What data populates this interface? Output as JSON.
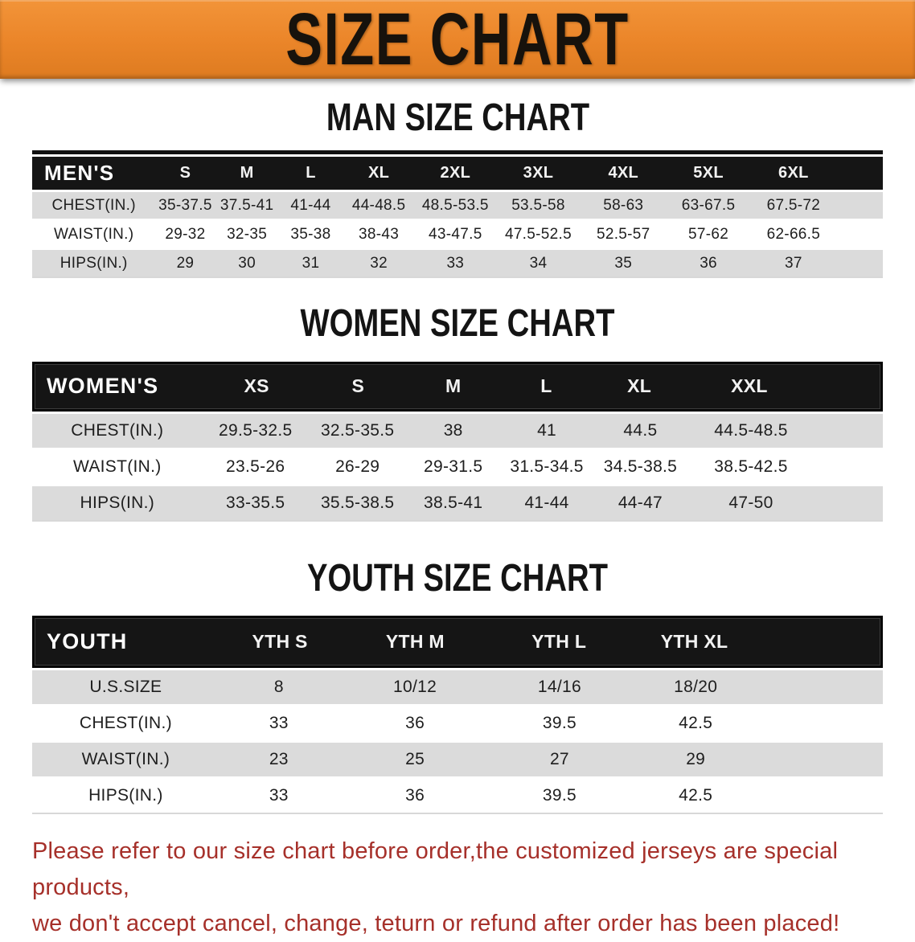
{
  "banner": {
    "title": "SIZE CHART"
  },
  "colors": {
    "banner_bg": "#EB862A",
    "header_bg": "#151515",
    "row_alt_bg": "#DBDBDB",
    "disclaimer_red": "#A6302A"
  },
  "sections": [
    {
      "id": "men",
      "heading": "MAN SIZE CHART",
      "corner_label": "MEN'S",
      "columns": [
        "S",
        "M",
        "L",
        "XL",
        "2XL",
        "3XL",
        "4XL",
        "5XL",
        "6XL"
      ],
      "rows": [
        {
          "label": "CHEST(IN.)",
          "values": [
            "35-37.5",
            "37.5-41",
            "41-44",
            "44-48.5",
            "48.5-53.5",
            "53.5-58",
            "58-63",
            "63-67.5",
            "67.5-72"
          ]
        },
        {
          "label": "WAIST(IN.)",
          "values": [
            "29-32",
            "32-35",
            "35-38",
            "38-43",
            "43-47.5",
            "47.5-52.5",
            "52.5-57",
            "57-62",
            "62-66.5"
          ]
        },
        {
          "label": "HIPS(IN.)",
          "values": [
            "29",
            "30",
            "31",
            "32",
            "33",
            "34",
            "35",
            "36",
            "37"
          ]
        }
      ]
    },
    {
      "id": "women",
      "heading": "WOMEN SIZE CHART",
      "corner_label": "WOMEN'S",
      "columns": [
        "XS",
        "S",
        "M",
        "L",
        "XL",
        "XXL"
      ],
      "rows": [
        {
          "label": "CHEST(IN.)",
          "values": [
            "29.5-32.5",
            "32.5-35.5",
            "38",
            "41",
            "44.5",
            "44.5-48.5"
          ]
        },
        {
          "label": "WAIST(IN.)",
          "values": [
            "23.5-26",
            "26-29",
            "29-31.5",
            "31.5-34.5",
            "34.5-38.5",
            "38.5-42.5"
          ]
        },
        {
          "label": "HIPS(IN.)",
          "values": [
            "33-35.5",
            "35.5-38.5",
            "38.5-41",
            "41-44",
            "44-47",
            "47-50"
          ]
        }
      ]
    },
    {
      "id": "youth",
      "heading": "YOUTH SIZE CHART",
      "corner_label": "YOUTH",
      "columns": [
        "YTH S",
        "YTH M",
        "YTH L",
        "YTH XL"
      ],
      "rows": [
        {
          "label": "U.S.SIZE",
          "values": [
            "8",
            "10/12",
            "14/16",
            "18/20"
          ]
        },
        {
          "label": "CHEST(IN.)",
          "values": [
            "33",
            "36",
            "39.5",
            "42.5"
          ]
        },
        {
          "label": "WAIST(IN.)",
          "values": [
            "23",
            "25",
            "27",
            "29"
          ]
        },
        {
          "label": "HIPS(IN.)",
          "values": [
            "33",
            "36",
            "39.5",
            "42.5"
          ]
        }
      ]
    }
  ],
  "disclaimer": {
    "line1": "Please refer to our size chart before order,the customized jerseys are special products,",
    "line2": "we don't accept cancel, change, teturn or refund after order has been placed!"
  }
}
